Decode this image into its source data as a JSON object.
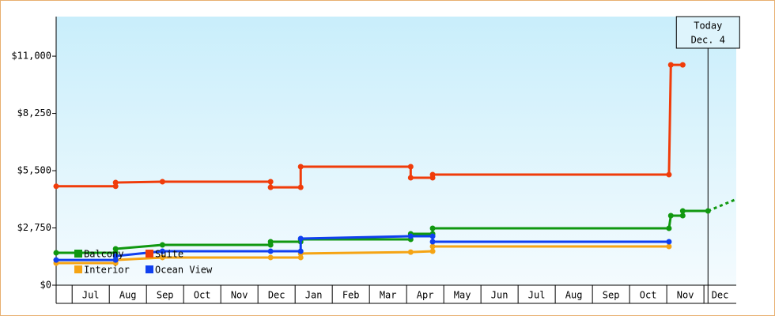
{
  "chart_data": {
    "type": "step-line",
    "ylim": [
      0,
      12900
    ],
    "yticks": [
      {
        "value": 0,
        "label": "$0"
      },
      {
        "value": 2750,
        "label": "$2,750"
      },
      {
        "value": 5500,
        "label": "$5,500"
      },
      {
        "value": 8250,
        "label": "$8,250"
      },
      {
        "value": 11000,
        "label": "$11,000"
      }
    ],
    "xlim": [
      -0.43,
      17.87
    ],
    "categories": [
      null,
      "Jul",
      "Aug",
      "Sep",
      "Oct",
      "Nov",
      "Dec",
      "Jan",
      "Feb",
      "Mar",
      "Apr",
      "May",
      "Jun",
      "Jul",
      "Aug",
      "Sep",
      "Oct",
      "Nov",
      "Dec"
    ],
    "grid": false,
    "legend": "bottom-left",
    "today": {
      "x": 17.11,
      "label": [
        "Today",
        "Dec. 4"
      ]
    },
    "series": [
      {
        "name": "Balcony",
        "color": "#109810",
        "x": [
          -0.43,
          1.17,
          1.17,
          2.43,
          5.34,
          5.34,
          6.15,
          6.15,
          9.11,
          9.11,
          9.7,
          9.7,
          16.06,
          16.11,
          16.43,
          16.43,
          17.11
        ],
        "values": [
          1555,
          1555,
          1745,
          1935,
          1935,
          2086,
          2086,
          2200,
          2200,
          2466,
          2466,
          2731,
          2731,
          3338,
          3338,
          3565,
          3565
        ],
        "forecast": {
          "x": [
            17.11,
            17.87
          ],
          "values": [
            3565,
            4130
          ]
        }
      },
      {
        "name": "Suite",
        "color": "#f03c0a",
        "x": [
          -0.43,
          1.17,
          1.17,
          2.43,
          5.34,
          5.34,
          6.15,
          6.15,
          9.11,
          9.11,
          9.7,
          9.7,
          16.06,
          16.11,
          16.43
        ],
        "values": [
          4750,
          4750,
          4930,
          4970,
          4970,
          4700,
          4700,
          5690,
          5690,
          5160,
          5160,
          5310,
          5310,
          10580,
          10580
        ]
      },
      {
        "name": "Interior",
        "color": "#f5a414",
        "x": [
          -0.43,
          1.17,
          1.17,
          2.43,
          5.34,
          6.15,
          6.15,
          9.11,
          9.7,
          9.7,
          16.06
        ],
        "values": [
          1060,
          1060,
          1210,
          1330,
          1330,
          1330,
          1520,
          1590,
          1630,
          1860,
          1860
        ]
      },
      {
        "name": "Ocean View",
        "color": "#1040f0",
        "x": [
          -0.43,
          1.17,
          1.17,
          2.43,
          5.34,
          6.15,
          6.15,
          9.11,
          9.7,
          9.7,
          16.06
        ],
        "values": [
          1210,
          1210,
          1400,
          1630,
          1630,
          1630,
          2240,
          2350,
          2350,
          2086,
          2086
        ]
      }
    ]
  }
}
